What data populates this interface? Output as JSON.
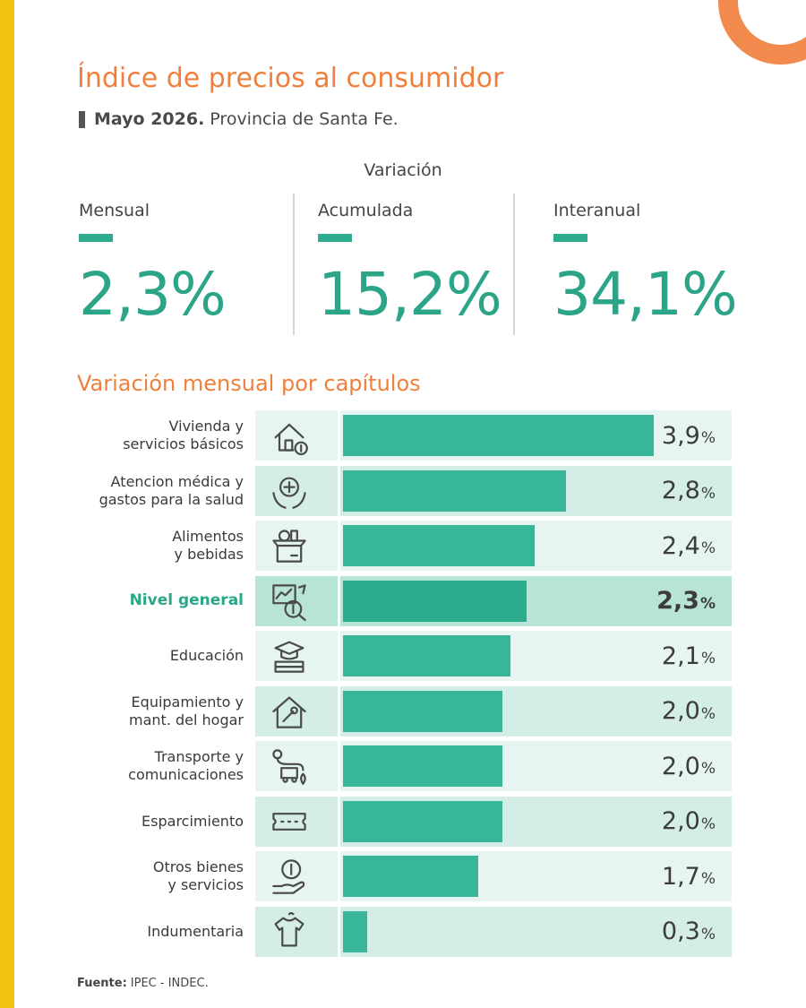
{
  "title": "Índice de precios al consumidor",
  "subtitle": {
    "period": "Mayo 2026.",
    "region": "Provincia de Santa Fe."
  },
  "variacion_label": "Variación",
  "kpis": [
    {
      "label": "Mensual",
      "value": "2,3%"
    },
    {
      "label": "Acumulada",
      "value": "15,2%"
    },
    {
      "label": "Interanual",
      "value": "34,1%"
    }
  ],
  "section_title": "Variación mensual por capítulos",
  "source": {
    "label": "Fuente:",
    "text": "IPEC - INDEC."
  },
  "colors": {
    "accent_orange": "#f07f3c",
    "accent_green": "#2ba487",
    "stripe_yellow": "#f2c313"
  },
  "chart_data": {
    "type": "bar",
    "orientation": "horizontal",
    "title": "Variación mensual por capítulos",
    "xlim": [
      0,
      3.9
    ],
    "unit": "%",
    "categories": [
      "Vivienda y\nservicios básicos",
      "Atencion médica y\ngastos para la salud",
      "Alimentos\ny bebidas",
      "Nivel general",
      "Educación",
      "Equipamiento y\nmant. del hogar",
      "Transporte y\ncomunicaciones",
      "Esparcimiento",
      "Otros bienes\ny servicios",
      "Indumentaria"
    ],
    "values": [
      3.9,
      2.8,
      2.4,
      2.3,
      2.1,
      2.0,
      2.0,
      2.0,
      1.7,
      0.3
    ],
    "value_labels": [
      "3,9",
      "2,8",
      "2,4",
      "2,3",
      "2,1",
      "2,0",
      "2,0",
      "2,0",
      "1,7",
      "0,3"
    ],
    "highlight_index": 3,
    "icons": [
      "house-dollar-icon",
      "health-hands-icon",
      "groceries-box-icon",
      "price-analysis-icon",
      "graduation-books-icon",
      "home-repair-icon",
      "route-van-icon",
      "ticket-icon",
      "money-hand-icon",
      "clothing-icon"
    ]
  }
}
